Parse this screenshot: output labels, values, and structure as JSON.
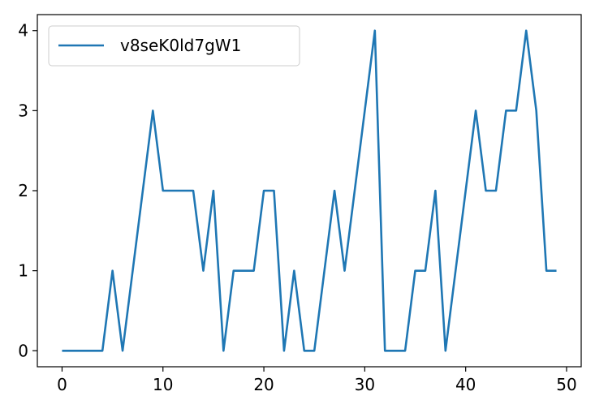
{
  "chart_data": {
    "type": "line",
    "title": "",
    "xlabel": "",
    "ylabel": "",
    "xlim": [
      -2.45,
      51.45
    ],
    "ylim": [
      -0.2,
      4.2
    ],
    "xticks": [
      0,
      10,
      20,
      30,
      40,
      50
    ],
    "yticks": [
      0,
      1,
      2,
      3,
      4
    ],
    "grid": false,
    "legend_position": "top-left",
    "series": [
      {
        "name": "v8seK0ld7gW1",
        "color": "#1f77b4",
        "x": [
          0,
          1,
          2,
          3,
          4,
          5,
          6,
          7,
          8,
          9,
          10,
          11,
          12,
          13,
          14,
          15,
          16,
          17,
          18,
          19,
          20,
          21,
          22,
          23,
          24,
          25,
          26,
          27,
          28,
          29,
          30,
          31,
          32,
          33,
          34,
          35,
          36,
          37,
          38,
          39,
          40,
          41,
          42,
          43,
          44,
          45,
          46,
          47,
          48,
          49
        ],
        "y": [
          0,
          0,
          0,
          0,
          0,
          1,
          0,
          1,
          2,
          3,
          2,
          2,
          2,
          2,
          1,
          2,
          0,
          1,
          1,
          1,
          2,
          2,
          0,
          1,
          0,
          0,
          1,
          2,
          1,
          2,
          3,
          4,
          0,
          0,
          0,
          1,
          1,
          2,
          0,
          1,
          2,
          3,
          2,
          2,
          3,
          3,
          4,
          3,
          1,
          1
        ]
      }
    ]
  }
}
